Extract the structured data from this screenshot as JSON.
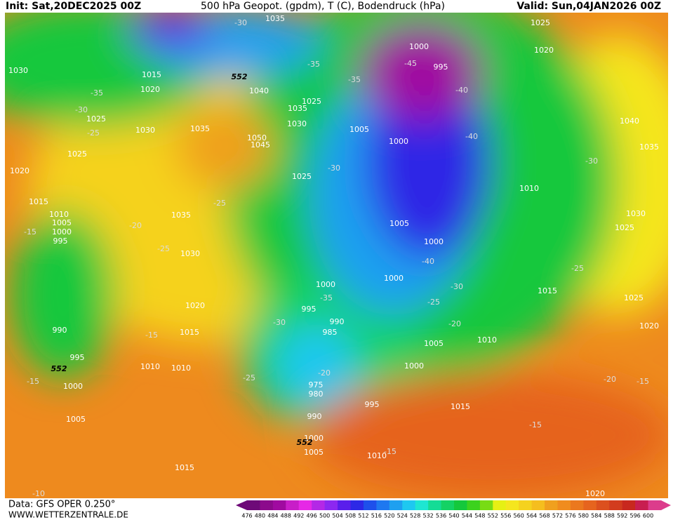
{
  "header": {
    "init": "Init: Sat,20DEC2025 00Z",
    "title": "500 hPa Geopot. (gpdm), T (C), Bodendruck (hPa)",
    "valid": "Valid: Sun,04JAN2026 00Z"
  },
  "footer": {
    "data": "Data: GFS OPER 0.250°",
    "site": "WWW.WETTERZENTRALE.DE"
  },
  "colorbar": {
    "ticks": [
      476,
      480,
      484,
      488,
      492,
      496,
      500,
      504,
      508,
      512,
      516,
      520,
      524,
      528,
      532,
      536,
      540,
      544,
      548,
      552,
      556,
      560,
      564,
      568,
      572,
      576,
      580,
      584,
      588,
      592,
      596,
      600
    ],
    "colors": [
      "#6e0a78",
      "#8c0a8c",
      "#a00aa0",
      "#c81ec8",
      "#e628e6",
      "#b428e6",
      "#8c28f0",
      "#5a1eeb",
      "#2d28e6",
      "#1e50eb",
      "#1e78f0",
      "#1ea0f0",
      "#1ec8f0",
      "#1ee6d2",
      "#14dc96",
      "#14d264",
      "#14c83c",
      "#3cd21e",
      "#78dc14",
      "#e6f014",
      "#f5e61e",
      "#f5d21e",
      "#f5be1e",
      "#f0a01e",
      "#f08c1e",
      "#eb781e",
      "#e6641e",
      "#dc501e",
      "#d23c1e",
      "#c8281e",
      "#c81e50",
      "#dc3c8c"
    ]
  },
  "map": {
    "pressure_labels": [
      1035,
      1030,
      1015,
      1020,
      1025,
      1030,
      1025,
      1020,
      1015,
      1010,
      1005,
      1000,
      995,
      990,
      995,
      1000,
      1005,
      1010,
      1010,
      1015,
      1020,
      1030,
      1035,
      1035,
      1040,
      1050,
      1045,
      1035,
      1030,
      1025,
      1025,
      1005,
      1000,
      1000,
      995,
      1025,
      1020,
      1040,
      1035,
      1010,
      1005,
      1000,
      1000,
      1000,
      995,
      990,
      985,
      975,
      980,
      990,
      995,
      1000,
      1005,
      1010,
      1015,
      1030,
      1025,
      1025,
      1020,
      1015,
      1010,
      1005,
      1000,
      1015,
      1020
    ],
    "temperature_labels": [
      -30,
      -35,
      -45,
      -35,
      -40,
      -40,
      -35,
      -30,
      -25,
      -30,
      -25,
      -20,
      -15,
      -25,
      -40,
      -30,
      -25,
      -20,
      -35,
      -30,
      -20,
      -25,
      -15,
      -15,
      -15,
      -15,
      -20,
      -15,
      -25,
      -30,
      -10
    ],
    "height_labels": [
      552,
      552,
      552
    ]
  }
}
